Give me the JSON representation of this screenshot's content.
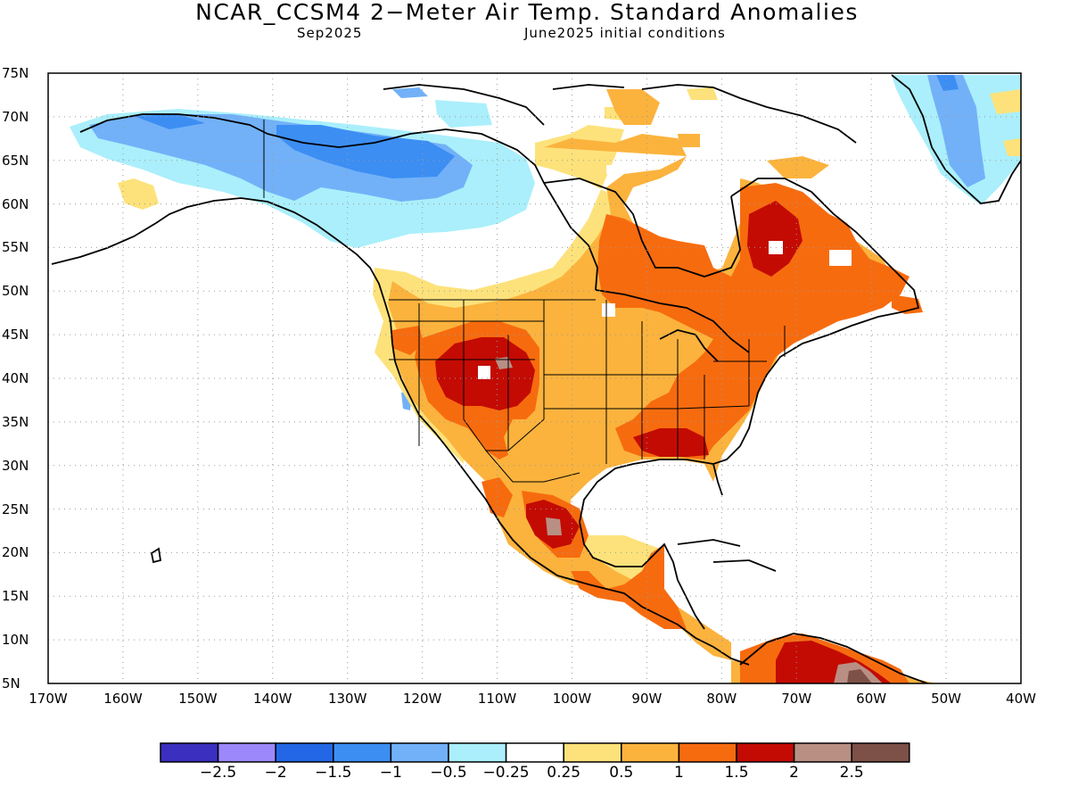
{
  "header": {
    "title": "NCAR_CCSM4 2−Meter Air Temp. Standard Anomalies",
    "valid_month": "Sep2025",
    "initial_conditions": "June2025 initial conditions"
  },
  "axes": {
    "lat_labels": [
      "75N",
      "70N",
      "65N",
      "60N",
      "55N",
      "50N",
      "45N",
      "40N",
      "35N",
      "30N",
      "25N",
      "20N",
      "15N",
      "10N",
      "5N"
    ],
    "lon_labels": [
      "170W",
      "160W",
      "150W",
      "140W",
      "130W",
      "120W",
      "110W",
      "100W",
      "90W",
      "80W",
      "70W",
      "60W",
      "50W",
      "40W"
    ],
    "lat_range": [
      5,
      75
    ],
    "lon_range": [
      -170,
      -40
    ],
    "grid": "dotted"
  },
  "colorbar": {
    "colors": [
      "#3a2fbe",
      "#9d88fb",
      "#2367e6",
      "#3c8ef3",
      "#72b1f8",
      "#aaeffb",
      "#ffffff",
      "#fde27b",
      "#fbb33d",
      "#f76b0f",
      "#c30b03",
      "#b98f84",
      "#7d5048"
    ],
    "labels": [
      "−2.5",
      "−2",
      "−1.5",
      "−1",
      "−0.5",
      "−0.25",
      "0.25",
      "0.5",
      "1",
      "1.5",
      "2",
      "2.5"
    ]
  },
  "icons": [
    "coastline-outline",
    "state-border-lines"
  ]
}
